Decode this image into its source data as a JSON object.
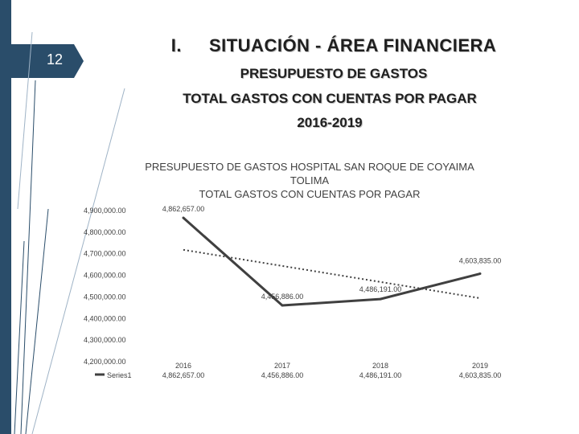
{
  "slide": {
    "number": "12",
    "title_numeral": "I.",
    "title": "SITUACIÓN - ÁREA FINANCIERA",
    "subtitle_lines": [
      "PRESUPUESTO DE GASTOS",
      "TOTAL GASTOS CON CUENTAS POR PAGAR",
      "2016-2019"
    ]
  },
  "chart_data": {
    "type": "line",
    "title_lines": [
      "PRESUPUESTO DE GASTOS HOSPITAL SAN ROQUE DE COYAIMA",
      "TOLIMA",
      "TOTAL GASTOS CON CUENTAS POR PAGAR"
    ],
    "categories": [
      "2016",
      "2017",
      "2018",
      "2019"
    ],
    "series": [
      {
        "name": "Series1",
        "values": [
          4862657,
          4456886,
          4486191,
          4603835
        ],
        "color": "#404040",
        "data_labels": [
          "4,862,657.00",
          "4,456,886.00",
          "4,486,191.00",
          "4,603,835.00"
        ]
      }
    ],
    "trendline": {
      "type": "linear",
      "color": "#404040",
      "style": "dotted"
    },
    "y_ticks": [
      "4,900,000.00",
      "4,800,000.00",
      "4,700,000.00",
      "4,600,000.00",
      "4,500,000.00",
      "4,400,000.00",
      "4,300,000.00",
      "4,200,000.00"
    ],
    "ylim": [
      4200000,
      4900000
    ],
    "legend": "data table at bottom"
  },
  "colors": {
    "band": "#2a4d6a",
    "tab": "#2a4d6a",
    "deco": "#2a4d6a"
  }
}
